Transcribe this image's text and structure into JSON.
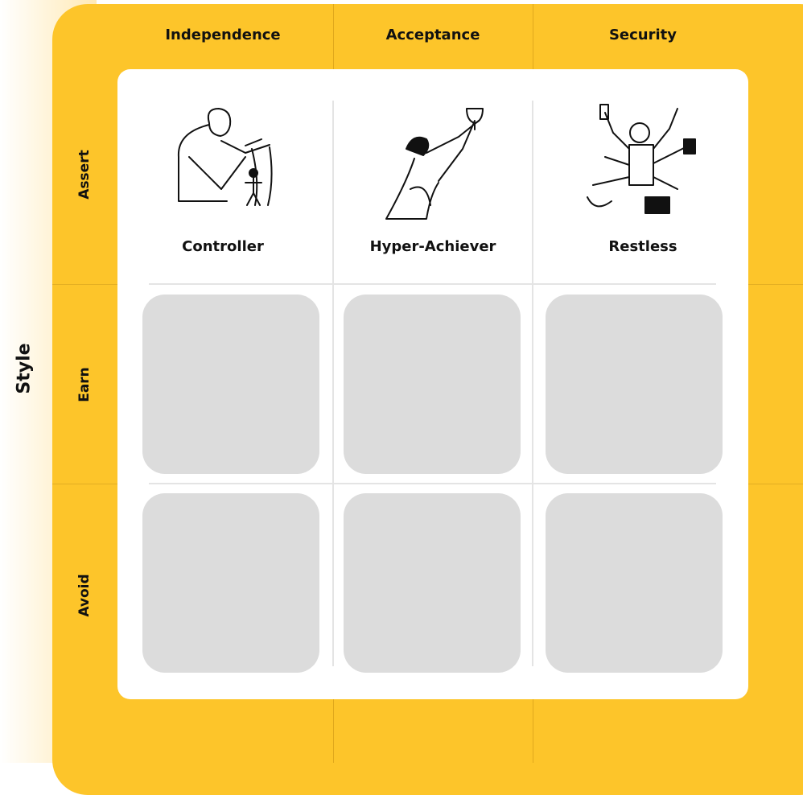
{
  "axis_label": "Style",
  "columns": [
    "Independence",
    "Acceptance",
    "Security"
  ],
  "rows": [
    "Assert",
    "Earn",
    "Avoid"
  ],
  "cards": [
    {
      "label": "Controller"
    },
    {
      "label": "Hyper-Achiever"
    },
    {
      "label": "Restless"
    }
  ]
}
